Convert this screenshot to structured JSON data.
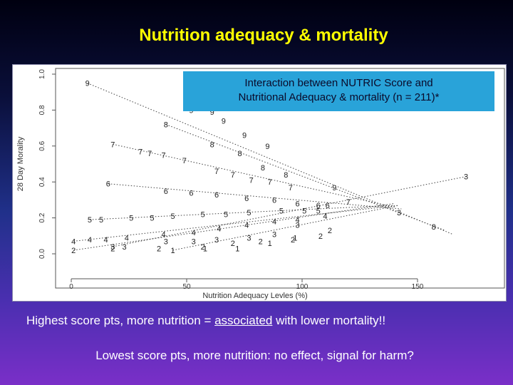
{
  "slide": {
    "title": "Nutrition adequacy & mortality",
    "caption_1_before": "Highest score pts, more nutrition = ",
    "caption_1_emphasis": "associated",
    "caption_1_after": " with lower mortality!!",
    "caption_2": "Lowest score pts, more nutrition: no effect, signal for harm?"
  },
  "colors": {
    "title": "#ffff00",
    "box": "#29a3d9",
    "plot_ink": "#333333"
  },
  "chart_data": {
    "type": "scatter",
    "title": "Interaction between NUTRIC Score and Nutritional Adequacy & mortality (n = 211)*",
    "title_line_1": "Interaction between NUTRIC Score and",
    "title_line_2": "Nutritional Adequacy  & mortality (n = 211)*",
    "xlabel": "Nutrition Adequacy Levles (%)",
    "ylabel": "28 Day Morality",
    "xlim": [
      0,
      180
    ],
    "ylim": [
      0,
      1.0
    ],
    "xticks": [
      "0",
      "50",
      "100",
      "150"
    ],
    "yticks": [
      "0.0",
      "0.2",
      "0.4",
      "0.6",
      "0.8",
      "1.0"
    ],
    "grid": false,
    "series": [
      {
        "name": "9",
        "points": [
          [
            7,
            0.95
          ],
          [
            52,
            0.8
          ],
          [
            61,
            0.79
          ],
          [
            66,
            0.74
          ],
          [
            75,
            0.66
          ],
          [
            85,
            0.6
          ],
          [
            114,
            0.37
          ]
        ]
      },
      {
        "name": "8",
        "points": [
          [
            41,
            0.72
          ],
          [
            61,
            0.61
          ],
          [
            73,
            0.56
          ],
          [
            83,
            0.48
          ],
          [
            93,
            0.44
          ],
          [
            157,
            0.15
          ]
        ]
      },
      {
        "name": "7",
        "points": [
          [
            18,
            0.61
          ],
          [
            30,
            0.57
          ],
          [
            34,
            0.56
          ],
          [
            40,
            0.55
          ],
          [
            49,
            0.52
          ],
          [
            63,
            0.46
          ],
          [
            70,
            0.44
          ],
          [
            78,
            0.41
          ],
          [
            86,
            0.4
          ],
          [
            95,
            0.37
          ],
          [
            120,
            0.29
          ]
        ]
      },
      {
        "name": "6",
        "points": [
          [
            16,
            0.39
          ],
          [
            41,
            0.35
          ],
          [
            52,
            0.34
          ],
          [
            63,
            0.33
          ],
          [
            76,
            0.31
          ],
          [
            88,
            0.3
          ],
          [
            98,
            0.28
          ],
          [
            107,
            0.27
          ],
          [
            111,
            0.27
          ]
        ]
      },
      {
        "name": "5",
        "points": [
          [
            8,
            0.19
          ],
          [
            13,
            0.19
          ],
          [
            26,
            0.2
          ],
          [
            35,
            0.2
          ],
          [
            44,
            0.21
          ],
          [
            57,
            0.22
          ],
          [
            67,
            0.22
          ],
          [
            77,
            0.23
          ],
          [
            91,
            0.24
          ],
          [
            101,
            0.24
          ],
          [
            107,
            0.24
          ]
        ]
      },
      {
        "name": "4",
        "points": [
          [
            1,
            0.07
          ],
          [
            8,
            0.08
          ],
          [
            15,
            0.08
          ],
          [
            24,
            0.09
          ],
          [
            40,
            0.11
          ],
          [
            53,
            0.12
          ],
          [
            64,
            0.14
          ],
          [
            76,
            0.16
          ],
          [
            88,
            0.18
          ],
          [
            98,
            0.19
          ],
          [
            110,
            0.21
          ]
        ]
      },
      {
        "name": "3",
        "points": [
          [
            18,
            0.04
          ],
          [
            23,
            0.04
          ],
          [
            41,
            0.07
          ],
          [
            53,
            0.07
          ],
          [
            63,
            0.08
          ],
          [
            77,
            0.09
          ],
          [
            88,
            0.11
          ],
          [
            98,
            0.16
          ],
          [
            142,
            0.23
          ],
          [
            171,
            0.43
          ]
        ]
      },
      {
        "name": "2",
        "points": [
          [
            1,
            0.02
          ],
          [
            18,
            0.03
          ],
          [
            38,
            0.03
          ],
          [
            57,
            0.04
          ],
          [
            70,
            0.06
          ],
          [
            82,
            0.07
          ],
          [
            96,
            0.08
          ],
          [
            108,
            0.1
          ],
          [
            112,
            0.13
          ]
        ]
      },
      {
        "name": "1",
        "points": [
          [
            44,
            0.02
          ],
          [
            58,
            0.03
          ],
          [
            72,
            0.03
          ],
          [
            86,
            0.06
          ],
          [
            97,
            0.09
          ]
        ]
      }
    ],
    "trend_lines": [
      {
        "name": "9",
        "from": [
          7,
          0.95
        ],
        "to": [
          165,
          0.11
        ]
      },
      {
        "name": "8",
        "from": [
          41,
          0.72
        ],
        "to": [
          162,
          0.13
        ]
      },
      {
        "name": "7",
        "from": [
          18,
          0.61
        ],
        "to": [
          140,
          0.26
        ]
      },
      {
        "name": "6",
        "from": [
          16,
          0.39
        ],
        "to": [
          143,
          0.25
        ]
      },
      {
        "name": "5",
        "from": [
          8,
          0.19
        ],
        "to": [
          140,
          0.27
        ]
      },
      {
        "name": "4",
        "from": [
          1,
          0.07
        ],
        "to": [
          142,
          0.27
        ]
      },
      {
        "name": "3",
        "from": [
          18,
          0.04
        ],
        "to": [
          171,
          0.43
        ]
      },
      {
        "name": "2",
        "from": [
          1,
          0.02
        ],
        "to": [
          140,
          0.28
        ]
      },
      {
        "name": "1",
        "from": [
          44,
          0.02
        ],
        "to": [
          142,
          0.27
        ]
      }
    ]
  }
}
